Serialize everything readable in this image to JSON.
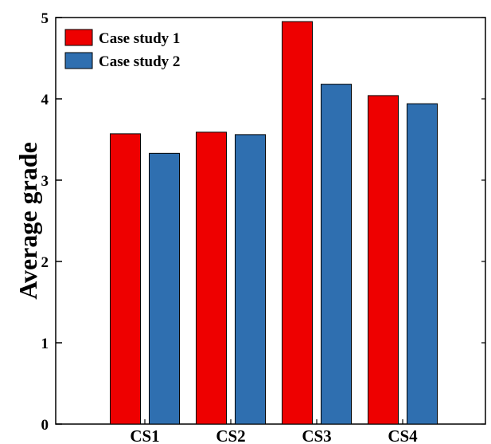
{
  "chart_data": {
    "type": "bar",
    "categories": [
      "CS1",
      "CS2",
      "CS3",
      "CS4"
    ],
    "series": [
      {
        "name": "Case study 1",
        "color": "#ee0000",
        "values": [
          3.57,
          3.59,
          4.95,
          4.04
        ]
      },
      {
        "name": "Case study 2",
        "color": "#2f6fb0",
        "values": [
          3.33,
          3.56,
          4.18,
          3.94
        ]
      }
    ],
    "title": "",
    "xlabel": "",
    "ylabel": "Average grade",
    "ylim": [
      0,
      5
    ],
    "yticks": [
      "0",
      "1",
      "2",
      "3",
      "4",
      "5"
    ],
    "grid": false,
    "legend_position": "top-left"
  }
}
